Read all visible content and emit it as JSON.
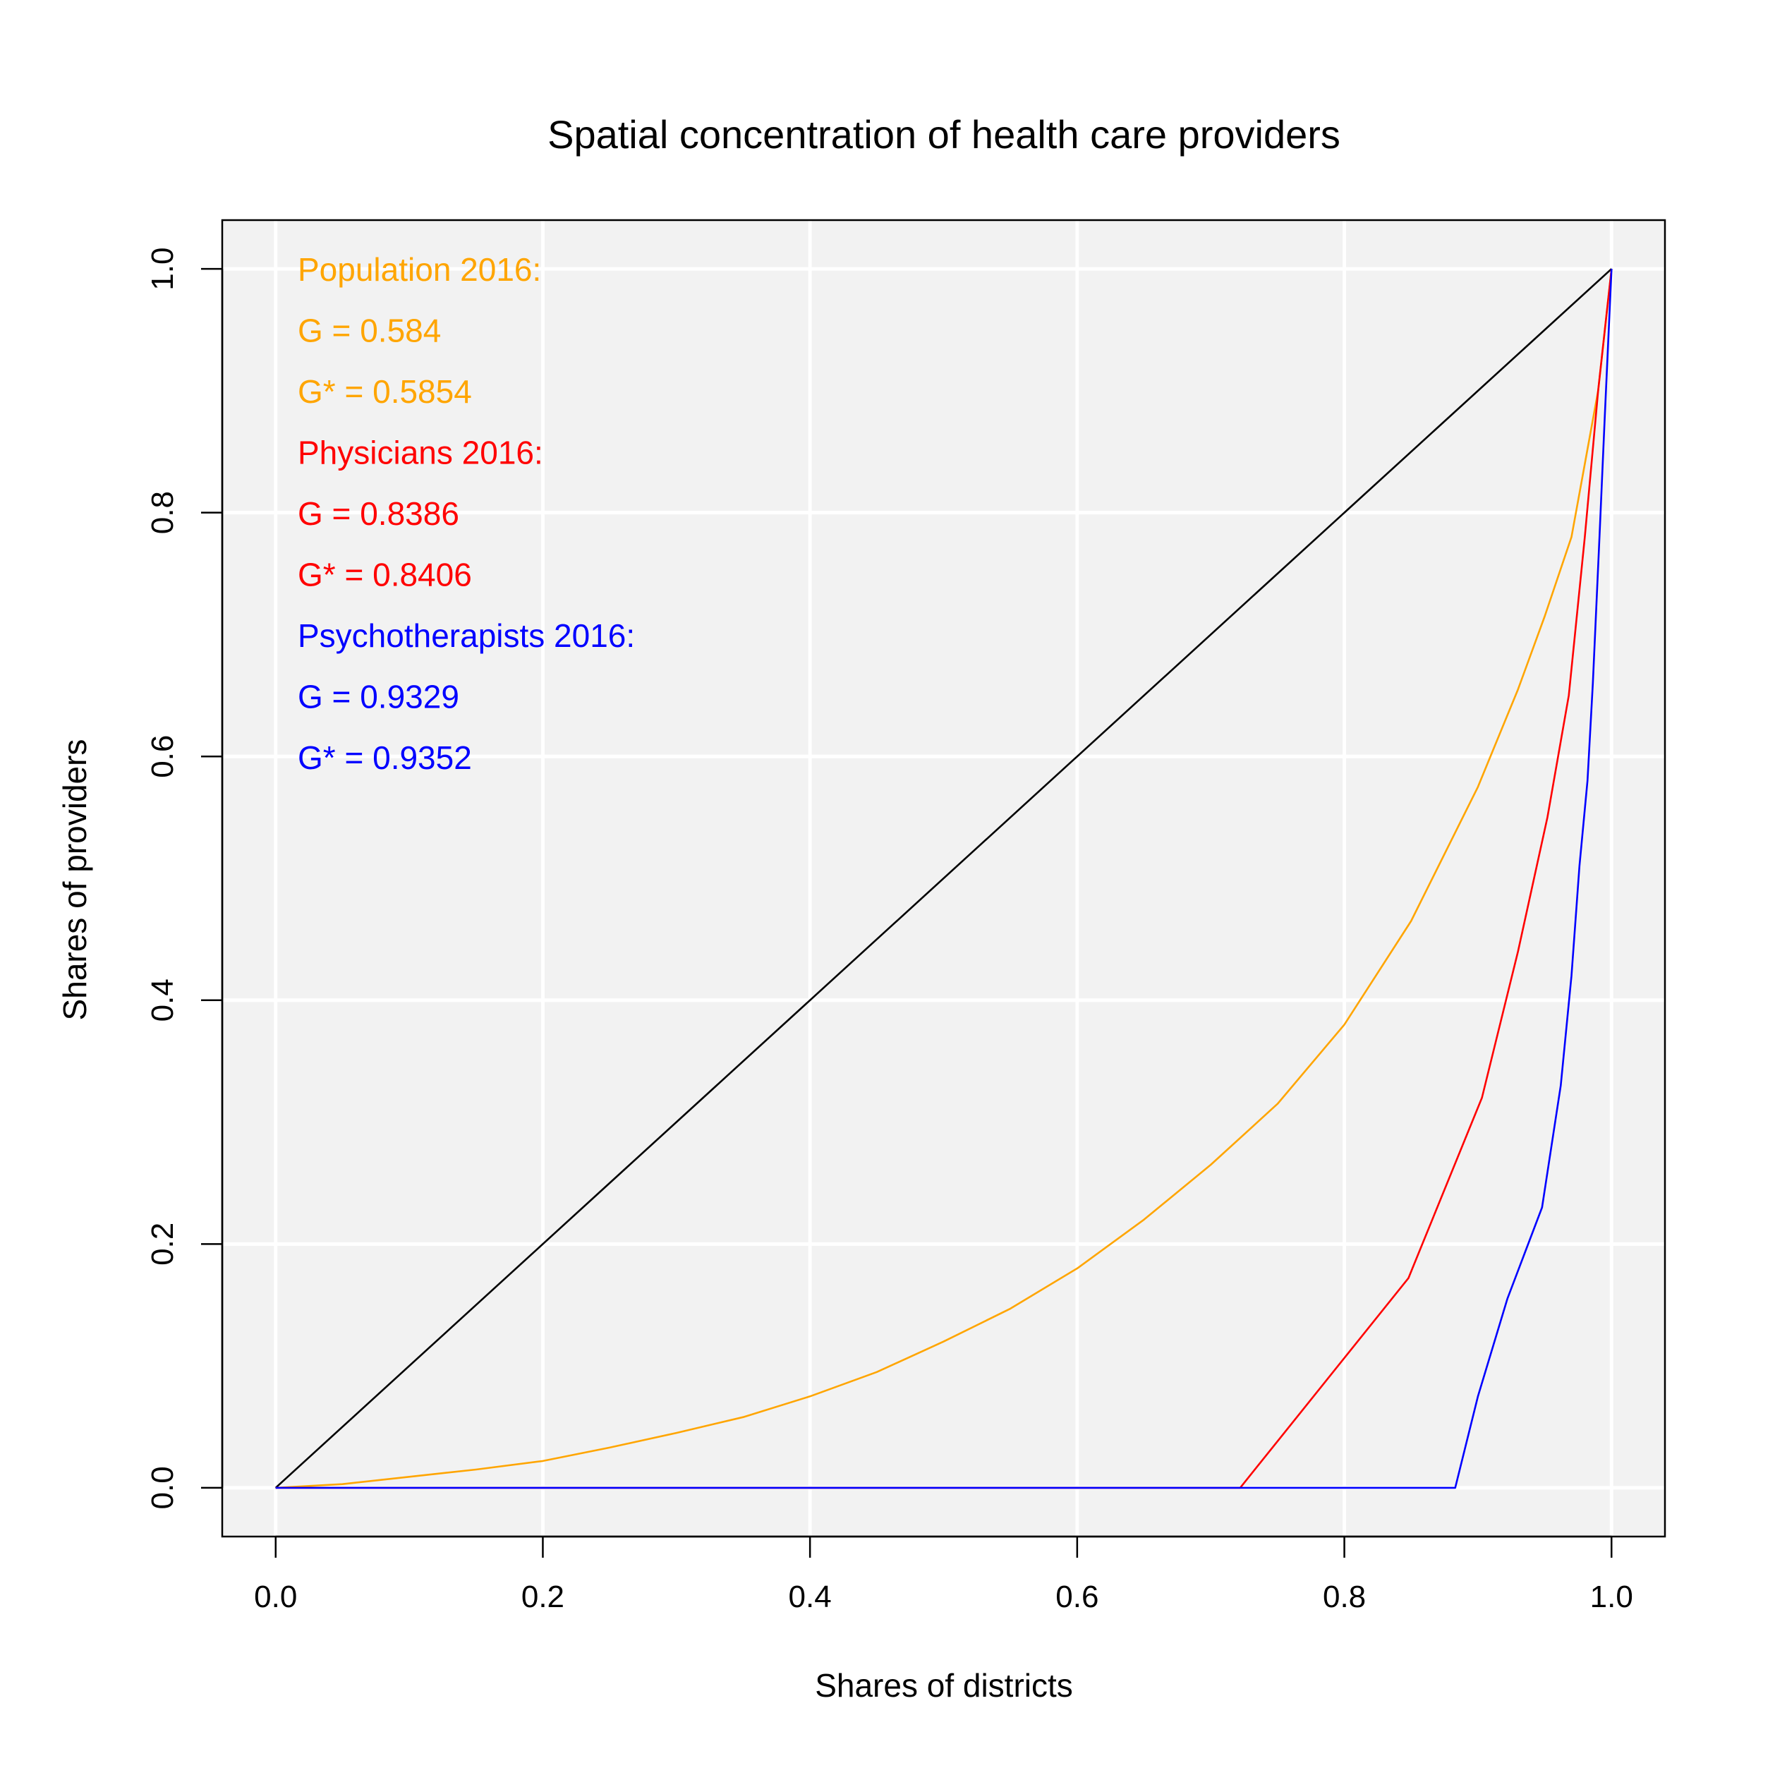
{
  "chart_data": {
    "type": "line",
    "title": "Spatial concentration of health care providers",
    "xlabel": "Shares of districts",
    "ylabel": "Shares of providers",
    "xlim": [
      -0.04,
      1.04
    ],
    "ylim": [
      -0.04,
      1.04
    ],
    "grid": true,
    "background": "#f2f2f2",
    "x_ticks": [
      "0.0",
      "0.2",
      "0.4",
      "0.6",
      "0.8",
      "1.0"
    ],
    "y_ticks": [
      "0.0",
      "0.2",
      "0.4",
      "0.6",
      "0.8",
      "1.0"
    ],
    "tick_values": [
      0,
      0.2,
      0.4,
      0.6,
      0.8,
      1.0
    ],
    "series": [
      {
        "color": "#000000",
        "x": [
          0,
          1
        ],
        "y": [
          0,
          1
        ]
      },
      {
        "color": "#FFA500",
        "x": [
          0,
          0.05,
          0.1,
          0.15,
          0.2,
          0.25,
          0.3,
          0.35,
          0.4,
          0.45,
          0.5,
          0.55,
          0.6,
          0.65,
          0.7,
          0.75,
          0.8,
          0.85,
          0.9,
          0.93,
          0.95,
          0.97,
          0.98,
          0.99,
          1.0
        ],
        "y": [
          0,
          0.003,
          0.009,
          0.015,
          0.022,
          0.033,
          0.045,
          0.058,
          0.075,
          0.095,
          0.12,
          0.147,
          0.18,
          0.22,
          0.265,
          0.315,
          0.38,
          0.465,
          0.575,
          0.655,
          0.715,
          0.78,
          0.84,
          0.9,
          1.0
        ]
      },
      {
        "color": "#FF0000",
        "x": [
          0,
          0.722,
          0.848,
          0.903,
          0.93,
          0.952,
          0.968,
          0.98,
          0.99,
          1.0
        ],
        "y": [
          0,
          0,
          0.172,
          0.32,
          0.44,
          0.55,
          0.65,
          0.78,
          0.9,
          1.0
        ]
      },
      {
        "color": "#0000FF",
        "x": [
          0,
          0.883,
          0.9,
          0.922,
          0.948,
          0.962,
          0.97,
          0.976,
          0.982,
          0.986,
          0.991,
          0.995,
          1.0
        ],
        "y": [
          0,
          0,
          0.075,
          0.155,
          0.23,
          0.33,
          0.42,
          0.51,
          0.58,
          0.66,
          0.78,
          0.88,
          1.0
        ]
      }
    ],
    "annotations": [
      {
        "text": "Population 2016:",
        "color": "#FFA500"
      },
      {
        "text": "G = 0.584",
        "color": "#FFA500"
      },
      {
        "text": "G* = 0.5854",
        "color": "#FFA500"
      },
      {
        "text": "Physicians 2016:",
        "color": "#FF0000"
      },
      {
        "text": "G = 0.8386",
        "color": "#FF0000"
      },
      {
        "text": "G* = 0.8406",
        "color": "#FF0000"
      },
      {
        "text": "Psychotherapists 2016:",
        "color": "#0000FF"
      },
      {
        "text": "G = 0.9329",
        "color": "#0000FF"
      },
      {
        "text": "G* = 0.9352",
        "color": "#0000FF"
      }
    ]
  }
}
